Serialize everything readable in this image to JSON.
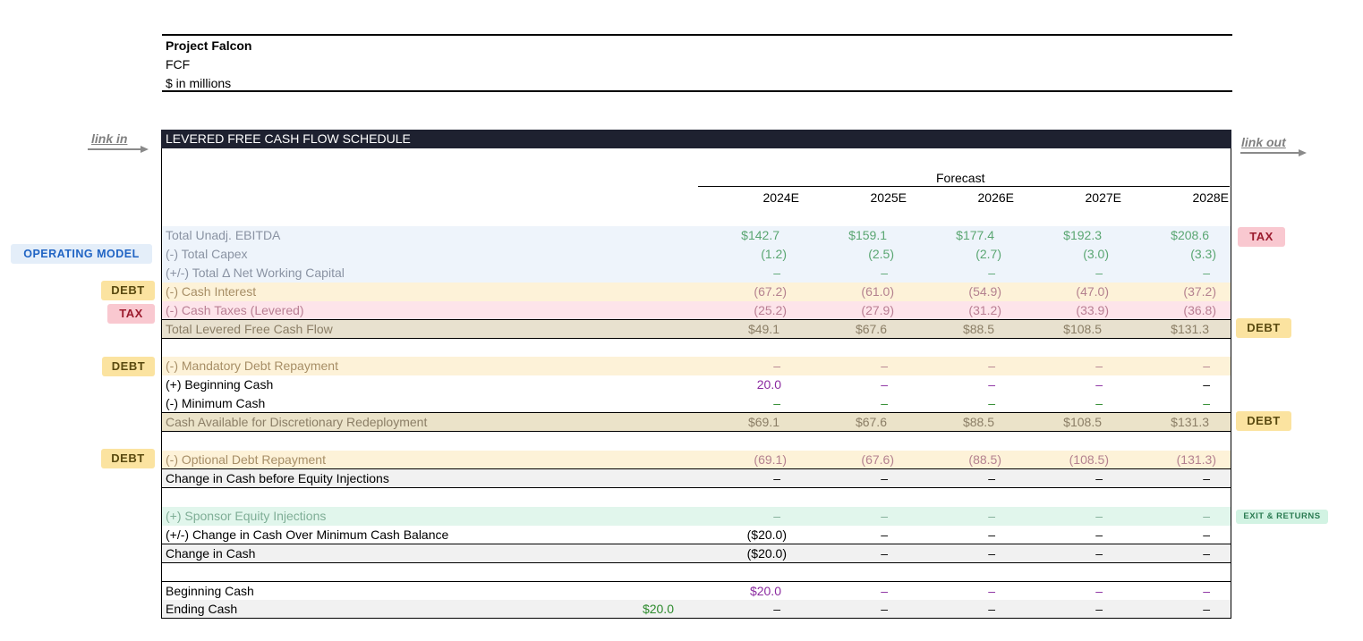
{
  "header": {
    "title": "Project Falcon",
    "subtitle": "FCF",
    "units": "$ in millions"
  },
  "schedule": {
    "title": "LEVERED FREE CASH FLOW SCHEDULE",
    "forecast_label": "Forecast",
    "years": [
      "2024E",
      "2025E",
      "2026E",
      "2027E",
      "2028E"
    ]
  },
  "links": {
    "in": "link in",
    "out": "link out"
  },
  "tags": {
    "operating_model": "OPERATING MODEL",
    "debt": "DEBT",
    "tax": "TAX",
    "exit_returns": "EXIT & RETURNS"
  },
  "rows": {
    "ebitda": {
      "label": "Total Unadj. EBITDA",
      "values": [
        "$142.7",
        "$159.1",
        "$177.4",
        "$192.3",
        "$208.6"
      ]
    },
    "capex": {
      "label": "(-) Total Capex",
      "values": [
        "(1.2)",
        "(2.5)",
        "(2.7)",
        "(3.0)",
        "(3.3)"
      ]
    },
    "nwc": {
      "label": "(+/-) Total Δ Net Working Capital",
      "values": [
        "–",
        "–",
        "–",
        "–",
        "–"
      ]
    },
    "interest": {
      "label": "(-) Cash Interest",
      "values": [
        "(67.2)",
        "(61.0)",
        "(54.9)",
        "(47.0)",
        "(37.2)"
      ]
    },
    "taxes": {
      "label": "(-) Cash Taxes (Levered)",
      "values": [
        "(25.2)",
        "(27.9)",
        "(31.2)",
        "(33.9)",
        "(36.8)"
      ]
    },
    "tlfcf": {
      "label": "Total Levered Free Cash Flow",
      "values": [
        "$49.1",
        "$67.6",
        "$88.5",
        "$108.5",
        "$131.3"
      ]
    },
    "mandatory": {
      "label": "(-) Mandatory Debt Repayment",
      "values": [
        "–",
        "–",
        "–",
        "–",
        "–"
      ]
    },
    "beg_cash": {
      "label": "(+) Beginning Cash",
      "values": [
        "20.0",
        "–",
        "–",
        "–",
        "–"
      ]
    },
    "min_cash": {
      "label": "(-) Minimum Cash",
      "values": [
        "–",
        "–",
        "–",
        "–",
        "–"
      ]
    },
    "cash_avail": {
      "label": "Cash Available for Discretionary Redeployment",
      "values": [
        "$69.1",
        "$67.6",
        "$88.5",
        "$108.5",
        "$131.3"
      ]
    },
    "optional": {
      "label": "(-) Optional Debt Repayment",
      "values": [
        "(69.1)",
        "(67.6)",
        "(88.5)",
        "(108.5)",
        "(131.3)"
      ]
    },
    "chg_before_eq": {
      "label": "Change in Cash before Equity Injections",
      "values": [
        "–",
        "–",
        "–",
        "–",
        "–"
      ]
    },
    "sponsor": {
      "label": "(+) Sponsor Equity Injections",
      "values": [
        "–",
        "–",
        "–",
        "–",
        "–"
      ]
    },
    "chg_over_min": {
      "label": "(+/-) Change in Cash Over Minimum Cash Balance",
      "values": [
        "($20.0)",
        "–",
        "–",
        "–",
        "–"
      ]
    },
    "chg_cash": {
      "label": "Change in Cash",
      "values": [
        "($20.0)",
        "–",
        "–",
        "–",
        "–"
      ]
    },
    "beg_cash2": {
      "label": "Beginning Cash",
      "values": [
        "$20.0",
        "–",
        "–",
        "–",
        "–"
      ]
    },
    "end_cash": {
      "label": "Ending Cash",
      "extra": "$20.0",
      "values": [
        "–",
        "–",
        "–",
        "–",
        "–"
      ]
    }
  }
}
